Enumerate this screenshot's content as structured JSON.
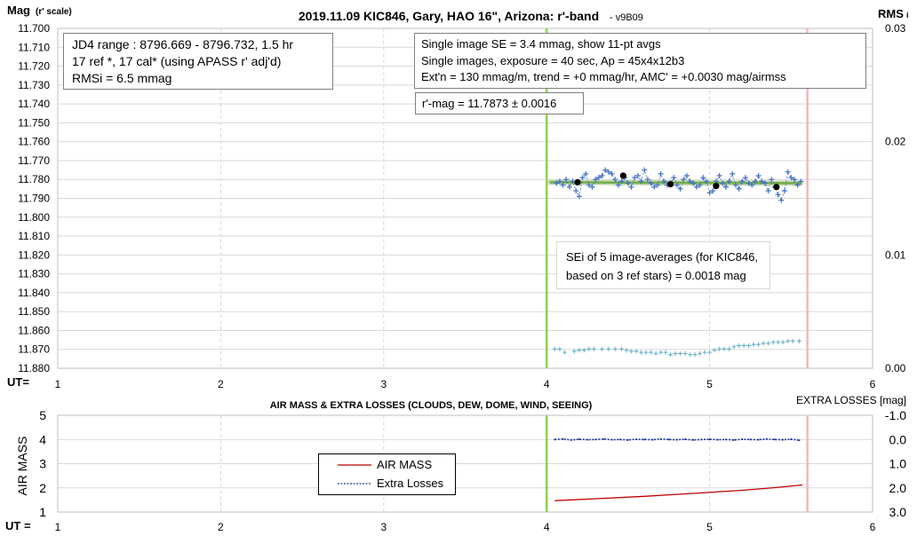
{
  "chart_data": [
    {
      "type": "scatter",
      "title": "2019.11.09 KIC846, Gary, HAO 16\", Arizona: r'-band",
      "title_suffix": "- v9B09",
      "ylabel": "Mag",
      "ylabel_note": "(r' scale)",
      "y2label": "RMS",
      "y2label_note": "i",
      "xlabel": "UT=",
      "xlim": [
        1,
        6
      ],
      "ylim": [
        11.7,
        11.88
      ],
      "y_reversed": true,
      "y2lim": [
        0.0,
        0.03
      ],
      "x_ticks": [
        "1",
        "2",
        "3",
        "4",
        "5",
        "6"
      ],
      "y_ticks": [
        "11.700",
        "11.710",
        "11.720",
        "11.730",
        "11.740",
        "11.750",
        "11.760",
        "11.770",
        "11.780",
        "11.790",
        "11.800",
        "11.810",
        "11.820",
        "11.830",
        "11.840",
        "11.850",
        "11.860",
        "11.870",
        "11.880"
      ],
      "y2_ticks": [
        "0.03",
        "0.02",
        "0.01",
        "0.00"
      ],
      "grid": true,
      "vertical_markers": [
        {
          "x": 4.0,
          "color": "#92d050"
        },
        {
          "x": 5.6,
          "color": "#f4b6bd"
        }
      ],
      "series": [
        {
          "kind": "single-image mags",
          "color": "#4472c4",
          "x": [
            4.06,
            4.08,
            4.1,
            4.12,
            4.14,
            4.16,
            4.18,
            4.2,
            4.22,
            4.24,
            4.26,
            4.28,
            4.3,
            4.32,
            4.34,
            4.36,
            4.38,
            4.4,
            4.42,
            4.44,
            4.46,
            4.48,
            4.5,
            4.52,
            4.54,
            4.56,
            4.58,
            4.6,
            4.62,
            4.64,
            4.66,
            4.68,
            4.7,
            4.72,
            4.74,
            4.76,
            4.78,
            4.8,
            4.82,
            4.84,
            4.86,
            4.88,
            4.9,
            4.92,
            4.94,
            4.96,
            4.98,
            5.0,
            5.02,
            5.04,
            5.06,
            5.08,
            5.1,
            5.12,
            5.14,
            5.16,
            5.18,
            5.2,
            5.22,
            5.24,
            5.26,
            5.28,
            5.3,
            5.32,
            5.34,
            5.36,
            5.38,
            5.4,
            5.42,
            5.44,
            5.46,
            5.48,
            5.5,
            5.52,
            5.54,
            5.56
          ],
          "y": [
            11.782,
            11.781,
            11.783,
            11.78,
            11.784,
            11.781,
            11.786,
            11.789,
            11.779,
            11.777,
            11.783,
            11.784,
            11.78,
            11.779,
            11.778,
            11.775,
            11.776,
            11.777,
            11.78,
            11.783,
            11.781,
            11.779,
            11.782,
            11.784,
            11.779,
            11.778,
            11.781,
            11.775,
            11.78,
            11.782,
            11.784,
            11.783,
            11.777,
            11.781,
            11.783,
            11.782,
            11.779,
            11.783,
            11.785,
            11.78,
            11.778,
            11.781,
            11.782,
            11.784,
            11.783,
            11.779,
            11.781,
            11.787,
            11.786,
            11.781,
            11.778,
            11.782,
            11.784,
            11.781,
            11.777,
            11.783,
            11.785,
            11.781,
            11.779,
            11.782,
            11.783,
            11.781,
            11.778,
            11.781,
            11.782,
            11.786,
            11.78,
            11.784,
            11.788,
            11.791,
            11.786,
            11.776,
            11.779,
            11.78,
            11.783,
            11.781
          ]
        },
        {
          "kind": "11-pt averages",
          "color": "#000000",
          "x": [
            4.19,
            4.47,
            4.76,
            5.04,
            5.41
          ],
          "y": [
            11.7815,
            11.778,
            11.7825,
            11.7835,
            11.784
          ]
        },
        {
          "kind": "mean fit",
          "color": "#70ad47",
          "x": [
            4.02,
            5.56
          ],
          "y": [
            11.7815,
            11.782
          ]
        },
        {
          "kind": "RMSi",
          "color": "#6fb3c7",
          "axis": "y2",
          "x": [
            4.05,
            4.08,
            4.11,
            4.17,
            4.2,
            4.23,
            4.26,
            4.29,
            4.34,
            4.38,
            4.42,
            4.46,
            4.49,
            4.52,
            4.55,
            4.58,
            4.61,
            4.64,
            4.67,
            4.7,
            4.73,
            4.76,
            4.79,
            4.82,
            4.85,
            4.88,
            4.91,
            4.94,
            4.97,
            5.0,
            5.03,
            5.06,
            5.09,
            5.12,
            5.15,
            5.18,
            5.21,
            5.24,
            5.27,
            5.3,
            5.33,
            5.36,
            5.39,
            5.42,
            5.45,
            5.48,
            5.51,
            5.55
          ],
          "y": [
            0.0017,
            0.0017,
            0.0014,
            0.0015,
            0.0016,
            0.0016,
            0.0017,
            0.0017,
            0.0017,
            0.0017,
            0.0017,
            0.0017,
            0.0016,
            0.0015,
            0.0015,
            0.0014,
            0.0014,
            0.0014,
            0.0013,
            0.0014,
            0.0014,
            0.0012,
            0.0013,
            0.0013,
            0.0013,
            0.0012,
            0.0012,
            0.0013,
            0.0014,
            0.0014,
            0.0016,
            0.0017,
            0.0017,
            0.0017,
            0.0019,
            0.002,
            0.002,
            0.002,
            0.0021,
            0.0021,
            0.0022,
            0.0022,
            0.0023,
            0.0023,
            0.0023,
            0.0024,
            0.0024,
            0.0024
          ]
        }
      ]
    },
    {
      "type": "line",
      "title": "AIR MASS & EXTRA LOSSES (CLOUDS, DEW, DOME, WIND, SEEING)",
      "ylabel": "AIR MASS",
      "y2label": "EXTRA LOSSES [mag]",
      "xlabel": "UT =",
      "xlim": [
        1,
        6
      ],
      "ylim": [
        1,
        5
      ],
      "y2lim": [
        -1.0,
        3.0
      ],
      "y2_reversed": true,
      "x_ticks": [
        "1",
        "2",
        "3",
        "4",
        "5",
        "6"
      ],
      "y_ticks": [
        "5",
        "4",
        "3",
        "2",
        "1"
      ],
      "y2_ticks": [
        "-1.0",
        "0.0",
        "1.0",
        "2.0",
        "3.0"
      ],
      "grid": true,
      "legend_placement": "center-left",
      "vertical_markers": [
        {
          "x": 4.0,
          "color": "#92d050"
        },
        {
          "x": 5.6,
          "color": "#f4b6bd"
        }
      ],
      "series": [
        {
          "name": "AIR MASS",
          "color": "#c00000",
          "style": "solid",
          "x": [
            4.05,
            4.3,
            4.6,
            4.9,
            5.2,
            5.4,
            5.57
          ],
          "y": [
            1.47,
            1.55,
            1.65,
            1.77,
            1.9,
            2.01,
            2.12
          ]
        },
        {
          "name": "Extra Losses",
          "color": "#1f3a93",
          "style": "dashed",
          "axis": "y2",
          "x": [
            4.05,
            4.1,
            4.15,
            4.2,
            4.25,
            4.3,
            4.35,
            4.4,
            4.45,
            4.5,
            4.55,
            4.6,
            4.65,
            4.7,
            4.75,
            4.8,
            4.85,
            4.9,
            4.95,
            5.0,
            5.05,
            5.1,
            5.15,
            5.2,
            5.25,
            5.3,
            5.35,
            5.4,
            5.45,
            5.5,
            5.55
          ],
          "y": [
            0.0,
            -0.02,
            0.02,
            -0.01,
            0.01,
            0.0,
            -0.02,
            0.01,
            0.0,
            0.02,
            -0.01,
            0.0,
            0.01,
            -0.02,
            0.0,
            0.01,
            -0.01,
            0.02,
            0.0,
            -0.01,
            0.01,
            0.0,
            0.02,
            -0.01,
            0.0,
            0.01,
            -0.02,
            0.0,
            0.01,
            -0.01,
            0.03
          ]
        }
      ]
    }
  ],
  "annotations": {
    "jd": {
      "line1": "JD4 range : 8796.669 - 8796.732,  1.5  hr",
      "line2": "17 ref *, 17 cal* (using APASS r' adj'd)",
      "line3": "RMSi = 6.5 mmag"
    },
    "se": {
      "line1": "Single image SE = 3.4 mmag, show  11-pt avgs",
      "line2": "Single images, exposure = 40 sec, Ap = 45x4x12b3",
      "line3": "Ext'n = 130 mmag/m, trend =  +0 mmag/hr, AMC' = +0.0030 mag/airmss"
    },
    "rmag": "r'-mag = 11.7873 ± 0.0016",
    "sei": {
      "line1": "SEi of 5 image-averages (for KIC846,",
      "line2": "based on 3 ref stars) = 0.0018 mag"
    }
  }
}
